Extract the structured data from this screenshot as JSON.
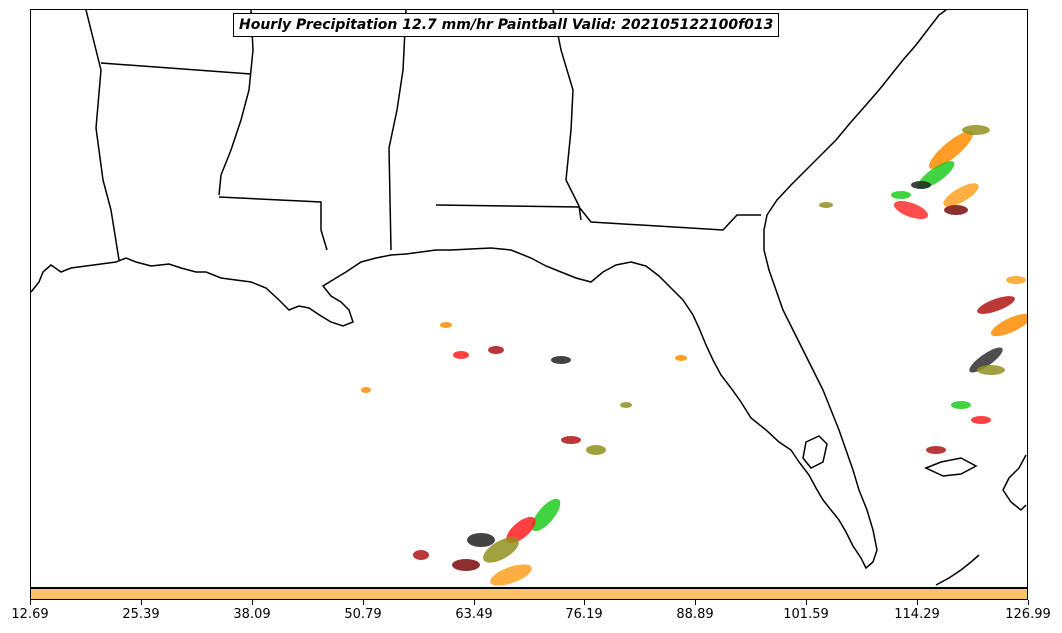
{
  "title": "Hourly Precipitation 12.7 mm/hr Paintball Valid: 202105122100f013",
  "colors": {
    "colorbar": "#ffc266",
    "members": [
      "#b01515",
      "#ff2020",
      "#20cc20",
      "#ff8c00",
      "#ffa020",
      "#909020",
      "#222222",
      "#7a0a0a"
    ]
  },
  "colorbar": {
    "ticks": [
      "12.69",
      "25.39",
      "38.09",
      "50.79",
      "63.49",
      "76.19",
      "88.89",
      "101.59",
      "114.29",
      "126.99"
    ]
  }
}
